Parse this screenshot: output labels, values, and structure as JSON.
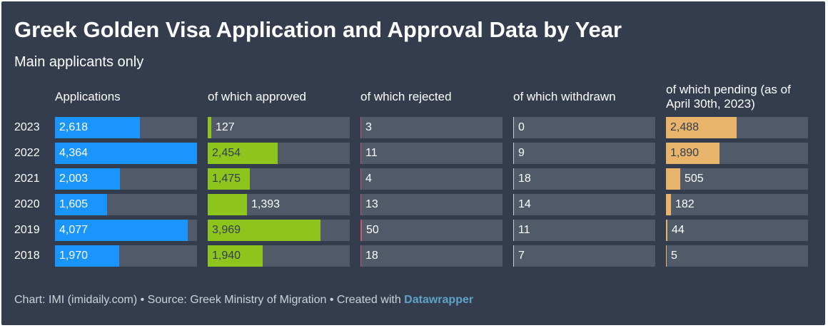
{
  "header": {
    "title": "Greek Golden Visa Application and Approval Data by Year",
    "subtitle": "Main applicants only"
  },
  "footer": {
    "text": "Chart: IMI (imidaily.com) • Source: Greek Ministry of Migration • Created with ",
    "brand": "Datawrapper"
  },
  "chart_data": {
    "type": "table",
    "title": "Greek Golden Visa Application and Approval Data by Year",
    "subtitle": "Main applicants only",
    "rows": [
      "2023",
      "2022",
      "2021",
      "2020",
      "2019",
      "2018"
    ],
    "columns": [
      {
        "label": "Applications",
        "color": "#1a94ff",
        "max": 4364,
        "values": [
          2618,
          4364,
          2003,
          1605,
          4077,
          1970
        ]
      },
      {
        "label": "of which approved",
        "color": "#8ec51c",
        "max": 5000,
        "values": [
          127,
          2454,
          1475,
          1393,
          3969,
          1940
        ]
      },
      {
        "label": "of which rejected",
        "color": "#c45a66",
        "max": 6000,
        "values": [
          3,
          11,
          4,
          13,
          50,
          18
        ]
      },
      {
        "label": "of which withdrawn",
        "color": "#c9ced6",
        "max": 6000,
        "values": [
          0,
          9,
          18,
          14,
          11,
          7
        ]
      },
      {
        "label": "of which pending (as of April 30th, 2023)",
        "color": "#e8b46c",
        "max": 5000,
        "values": [
          2488,
          1890,
          505,
          182,
          44,
          5
        ]
      }
    ]
  }
}
